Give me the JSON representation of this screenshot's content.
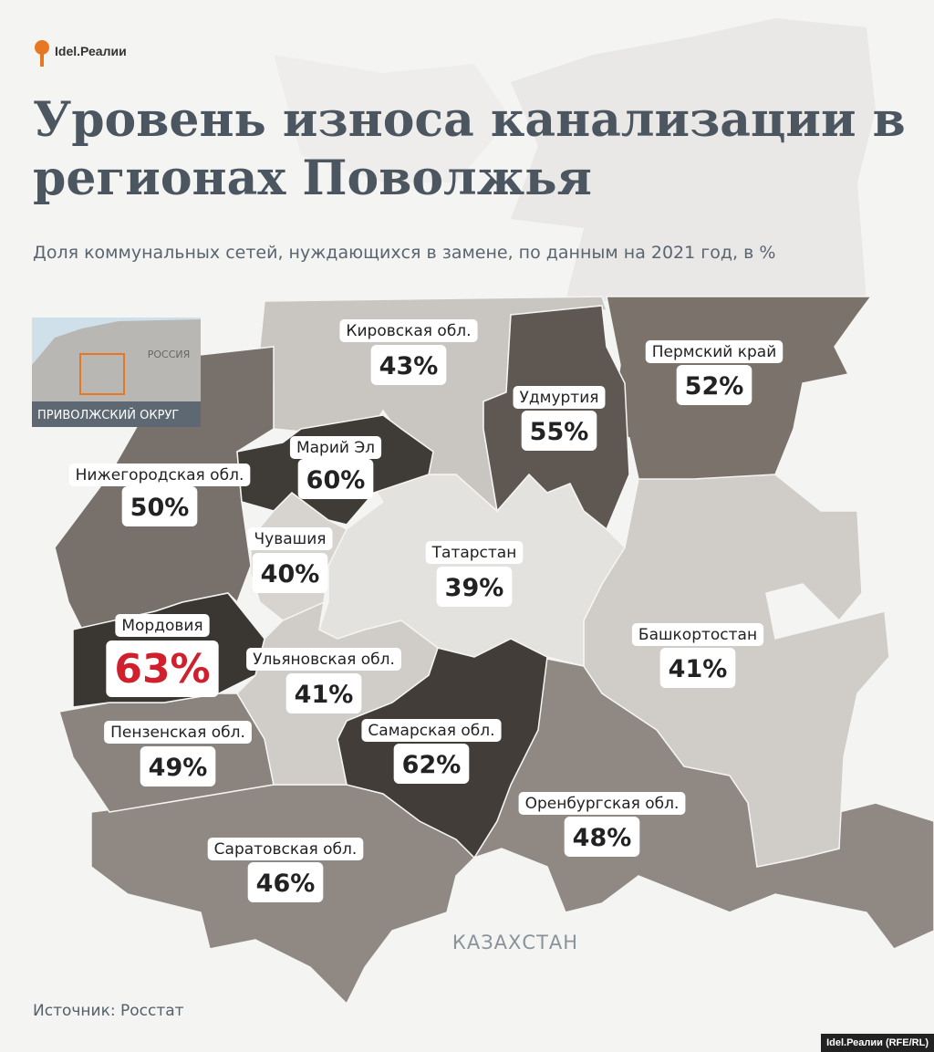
{
  "header": {
    "logo": "Idel.Реалии",
    "title": "Уровень износа канализации в регионах Поволжья",
    "subtitle": "Доля коммунальных сетей, нуждающихся в замене, по данным на 2021 год, в %"
  },
  "inset": {
    "country": "РОССИЯ",
    "caption": "ПРИВОЛЖСКИЙ ОКРУГ"
  },
  "map": {
    "neighbor": "КАЗАХСТАН",
    "highlight_color": "#d0202e",
    "regions": [
      {
        "name": "Кировская обл.",
        "value": 43,
        "value_label": "43%",
        "color": "#c9c6c2"
      },
      {
        "name": "Удмуртия",
        "value": 55,
        "value_label": "55%",
        "color": "#5f5852"
      },
      {
        "name": "Пермский край",
        "value": 52,
        "value_label": "52%",
        "color": "#7b726b"
      },
      {
        "name": "Марий Эл",
        "value": 60,
        "value_label": "60%",
        "color": "#3f3b37"
      },
      {
        "name": "Нижегородская обл.",
        "value": 50,
        "value_label": "50%",
        "color": "#78706a"
      },
      {
        "name": "Чувашия",
        "value": 40,
        "value_label": "40%",
        "color": "#d7d4d0"
      },
      {
        "name": "Татарстан",
        "value": 39,
        "value_label": "39%",
        "color": "#e4e2df"
      },
      {
        "name": "Башкортостан",
        "value": 41,
        "value_label": "41%",
        "color": "#d0cdc9"
      },
      {
        "name": "Мордовия",
        "value": 63,
        "value_label": "63%",
        "color": "#3a3632"
      },
      {
        "name": "Ульяновская обл.",
        "value": 41,
        "value_label": "41%",
        "color": "#d0cdc9"
      },
      {
        "name": "Пензенская обл.",
        "value": 49,
        "value_label": "49%",
        "color": "#8b837d"
      },
      {
        "name": "Самарская обл.",
        "value": 62,
        "value_label": "62%",
        "color": "#423d39"
      },
      {
        "name": "Оренбургская обл.",
        "value": 48,
        "value_label": "48%",
        "color": "#908983"
      },
      {
        "name": "Саратовская обл.",
        "value": 46,
        "value_label": "46%",
        "color": "#908983"
      }
    ]
  },
  "footer": {
    "source": "Источник: Росстат",
    "credit": "Idel.Реалии (RFE/RL)"
  }
}
